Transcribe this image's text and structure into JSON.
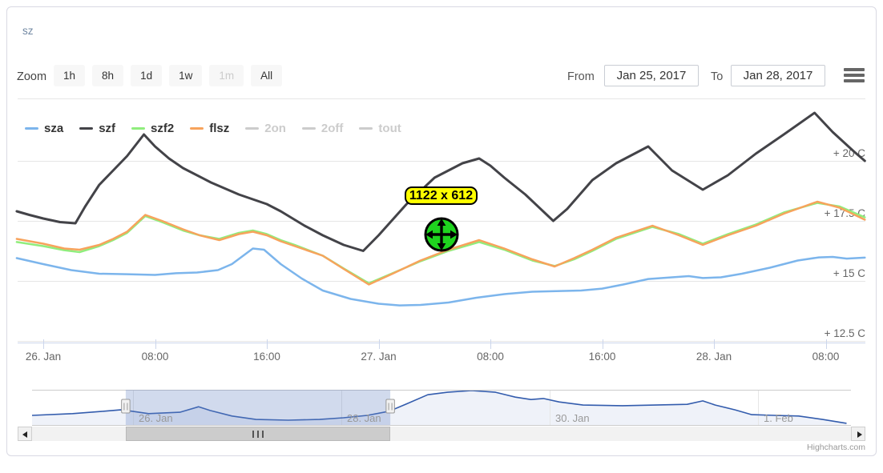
{
  "header": {
    "title": "sz"
  },
  "range_selector": {
    "zoom_label": "Zoom",
    "buttons": [
      {
        "label": "1h",
        "enabled": true
      },
      {
        "label": "8h",
        "enabled": true
      },
      {
        "label": "1d",
        "enabled": true
      },
      {
        "label": "1w",
        "enabled": true
      },
      {
        "label": "1m",
        "enabled": false
      },
      {
        "label": "All",
        "enabled": true
      }
    ],
    "from_label": "From",
    "from_value": "Jan 25, 2017",
    "to_label": "To",
    "to_value": "Jan 28, 2017",
    "menu_icon": "hamburger-icon"
  },
  "legend": {
    "items": [
      {
        "label": "sza",
        "color": "#7cb5ec",
        "label_color": "#333333",
        "enabled": true
      },
      {
        "label": "szf",
        "color": "#434348",
        "label_color": "#333333",
        "enabled": true
      },
      {
        "label": "szf2",
        "color": "#90ed7d",
        "label_color": "#333333",
        "enabled": true
      },
      {
        "label": "flsz",
        "color": "#f7a35c",
        "label_color": "#333333",
        "enabled": true
      },
      {
        "label": "2on",
        "color": "#cccccc",
        "label_color": "#cccccc",
        "enabled": false
      },
      {
        "label": "2off",
        "color": "#cccccc",
        "label_color": "#cccccc",
        "enabled": false
      },
      {
        "label": "tout",
        "color": "#cccccc",
        "label_color": "#cccccc",
        "enabled": false
      }
    ]
  },
  "overlay": {
    "size_badge": "1122 x 612",
    "badge_bg": "#ffff00",
    "cursor_icon": "move-crosshair",
    "cursor_color": "#1fd41f"
  },
  "chart_data": {
    "type": "line",
    "title": "",
    "x_unit": "hours since 26. Jan 2017 00:00",
    "y_unit": "C",
    "xlim": [
      -1.9,
      58.8
    ],
    "ylim": [
      12.5,
      22.4
    ],
    "grid": "horizontal",
    "x_ticks": [
      {
        "t": 0,
        "label": "26. Jan"
      },
      {
        "t": 8,
        "label": "08:00"
      },
      {
        "t": 16,
        "label": "16:00"
      },
      {
        "t": 24,
        "label": "27. Jan"
      },
      {
        "t": 32,
        "label": "08:00"
      },
      {
        "t": 40,
        "label": "16:00"
      },
      {
        "t": 48,
        "label": "28. Jan"
      },
      {
        "t": 56,
        "label": "08:00"
      }
    ],
    "y_ticks": [
      {
        "v": 20,
        "label": "+ 20 C"
      },
      {
        "v": 17.5,
        "label": "+ 17.5 C"
      },
      {
        "v": 15,
        "label": "+ 15 C"
      },
      {
        "v": 12.5,
        "label": "+ 12.5 C"
      }
    ],
    "series": [
      {
        "name": "sza",
        "color": "#7cb5ec",
        "width": 2.5,
        "visible": true,
        "points": [
          [
            -1.9,
            15.95
          ],
          [
            0,
            15.7
          ],
          [
            2,
            15.45
          ],
          [
            4,
            15.3
          ],
          [
            6,
            15.28
          ],
          [
            8,
            15.25
          ],
          [
            9.5,
            15.32
          ],
          [
            11,
            15.35
          ],
          [
            12.5,
            15.45
          ],
          [
            13.5,
            15.7
          ],
          [
            15,
            16.35
          ],
          [
            15.8,
            16.3
          ],
          [
            17,
            15.7
          ],
          [
            18.5,
            15.1
          ],
          [
            20,
            14.6
          ],
          [
            22,
            14.25
          ],
          [
            24,
            14.05
          ],
          [
            25.5,
            13.98
          ],
          [
            27,
            14.0
          ],
          [
            29,
            14.1
          ],
          [
            31,
            14.3
          ],
          [
            33,
            14.45
          ],
          [
            35,
            14.55
          ],
          [
            37,
            14.58
          ],
          [
            38.5,
            14.6
          ],
          [
            40,
            14.68
          ],
          [
            41.5,
            14.85
          ],
          [
            43.3,
            15.08
          ],
          [
            45,
            15.15
          ],
          [
            46.2,
            15.2
          ],
          [
            47.2,
            15.12
          ],
          [
            48.5,
            15.15
          ],
          [
            50,
            15.3
          ],
          [
            52,
            15.55
          ],
          [
            54,
            15.85
          ],
          [
            55.5,
            15.98
          ],
          [
            56.5,
            16.0
          ],
          [
            57.5,
            15.93
          ],
          [
            58.8,
            15.97
          ]
        ]
      },
      {
        "name": "szf",
        "color": "#434348",
        "width": 3,
        "visible": true,
        "points": [
          [
            -1.9,
            17.9
          ],
          [
            -1,
            17.75
          ],
          [
            0,
            17.6
          ],
          [
            1.2,
            17.45
          ],
          [
            2.3,
            17.4
          ],
          [
            3,
            18.1
          ],
          [
            4,
            19.0
          ],
          [
            5,
            19.6
          ],
          [
            6,
            20.2
          ],
          [
            7.2,
            21.1
          ],
          [
            8,
            20.6
          ],
          [
            9,
            20.1
          ],
          [
            10,
            19.7
          ],
          [
            12,
            19.1
          ],
          [
            14,
            18.6
          ],
          [
            16,
            18.2
          ],
          [
            17,
            17.9
          ],
          [
            18.7,
            17.3
          ],
          [
            20,
            16.9
          ],
          [
            21.5,
            16.5
          ],
          [
            22.9,
            16.25
          ],
          [
            24,
            16.9
          ],
          [
            26,
            18.2
          ],
          [
            28,
            19.3
          ],
          [
            30,
            19.9
          ],
          [
            31.2,
            20.1
          ],
          [
            32,
            19.8
          ],
          [
            33,
            19.3
          ],
          [
            34.5,
            18.6
          ],
          [
            36.5,
            17.5
          ],
          [
            37.5,
            18.0
          ],
          [
            39.3,
            19.2
          ],
          [
            41,
            19.9
          ],
          [
            43.3,
            20.6
          ],
          [
            45,
            19.6
          ],
          [
            47.2,
            18.8
          ],
          [
            49,
            19.4
          ],
          [
            51,
            20.3
          ],
          [
            53,
            21.1
          ],
          [
            55.2,
            22.0
          ],
          [
            56.5,
            21.2
          ],
          [
            58,
            20.4
          ],
          [
            58.8,
            20.0
          ]
        ]
      },
      {
        "name": "szf2",
        "color": "#90ed7d",
        "width": 2.5,
        "visible": true,
        "points": [
          [
            -1.9,
            16.62
          ],
          [
            0,
            16.45
          ],
          [
            1.5,
            16.28
          ],
          [
            2.6,
            16.2
          ],
          [
            4,
            16.45
          ],
          [
            5,
            16.7
          ],
          [
            6,
            17.0
          ],
          [
            7.3,
            17.7
          ],
          [
            8.5,
            17.45
          ],
          [
            10,
            17.1
          ],
          [
            11.2,
            16.9
          ],
          [
            12.6,
            16.75
          ],
          [
            14,
            17.0
          ],
          [
            15,
            17.1
          ],
          [
            16,
            16.95
          ],
          [
            17,
            16.7
          ],
          [
            18,
            16.5
          ],
          [
            20,
            16.05
          ],
          [
            21.5,
            15.52
          ],
          [
            23.3,
            14.9
          ],
          [
            25,
            15.32
          ],
          [
            27,
            15.82
          ],
          [
            29,
            16.25
          ],
          [
            31.2,
            16.62
          ],
          [
            33,
            16.3
          ],
          [
            35,
            15.85
          ],
          [
            36.6,
            15.62
          ],
          [
            38,
            15.9
          ],
          [
            39.3,
            16.25
          ],
          [
            41,
            16.75
          ],
          [
            43.6,
            17.25
          ],
          [
            45.5,
            16.95
          ],
          [
            47.2,
            16.55
          ],
          [
            49,
            16.95
          ],
          [
            51,
            17.35
          ],
          [
            53,
            17.85
          ],
          [
            55.4,
            18.25
          ],
          [
            57,
            18.1
          ],
          [
            58.8,
            17.65
          ]
        ]
      },
      {
        "name": "flsz",
        "color": "#f7a35c",
        "width": 2.5,
        "visible": true,
        "points": [
          [
            -1.9,
            16.75
          ],
          [
            0,
            16.55
          ],
          [
            1.5,
            16.35
          ],
          [
            2.6,
            16.3
          ],
          [
            4,
            16.5
          ],
          [
            5,
            16.75
          ],
          [
            6,
            17.05
          ],
          [
            7.3,
            17.75
          ],
          [
            8.5,
            17.5
          ],
          [
            10,
            17.15
          ],
          [
            11.2,
            16.9
          ],
          [
            12.6,
            16.7
          ],
          [
            14,
            16.95
          ],
          [
            15,
            17.05
          ],
          [
            16,
            16.9
          ],
          [
            17,
            16.65
          ],
          [
            18,
            16.45
          ],
          [
            20,
            16.05
          ],
          [
            21.5,
            15.5
          ],
          [
            23.3,
            14.85
          ],
          [
            25,
            15.3
          ],
          [
            27,
            15.85
          ],
          [
            29,
            16.3
          ],
          [
            31.2,
            16.7
          ],
          [
            33,
            16.35
          ],
          [
            35,
            15.9
          ],
          [
            36.6,
            15.6
          ],
          [
            38,
            15.95
          ],
          [
            39.3,
            16.3
          ],
          [
            41,
            16.8
          ],
          [
            43.6,
            17.3
          ],
          [
            45.5,
            16.9
          ],
          [
            47.2,
            16.5
          ],
          [
            49,
            16.9
          ],
          [
            51,
            17.3
          ],
          [
            53,
            17.8
          ],
          [
            55.4,
            18.3
          ],
          [
            57,
            18.05
          ],
          [
            58.8,
            17.55
          ]
        ]
      },
      {
        "name": "2on",
        "color": "#cccccc",
        "width": 2.5,
        "visible": false,
        "points": []
      },
      {
        "name": "2off",
        "color": "#cccccc",
        "width": 2.5,
        "visible": false,
        "points": []
      },
      {
        "name": "tout",
        "color": "#cccccc",
        "width": 2.5,
        "visible": false,
        "points": []
      }
    ],
    "navigator": {
      "line_color": "#335cad",
      "fill_color": "rgba(51,92,173,0.08)",
      "mask_color": "rgba(102,133,194,0.3)",
      "x_unit": "days since 25. Jan 2017 00:00",
      "ticks": [
        {
          "d": 1,
          "label": "26. Jan"
        },
        {
          "d": 3,
          "label": "28. Jan"
        },
        {
          "d": 5,
          "label": "30. Jan"
        },
        {
          "d": 7,
          "label": "1. Feb"
        }
      ],
      "selection": {
        "from_d": 0.93,
        "to_d": 3.47
      },
      "points": [
        [
          0.03,
          0.28
        ],
        [
          0.42,
          0.33
        ],
        [
          0.72,
          0.4
        ],
        [
          0.88,
          0.44
        ],
        [
          0.99,
          0.4
        ],
        [
          1.15,
          0.33
        ],
        [
          1.45,
          0.37
        ],
        [
          1.63,
          0.53
        ],
        [
          1.74,
          0.42
        ],
        [
          1.95,
          0.26
        ],
        [
          2.18,
          0.16
        ],
        [
          2.49,
          0.14
        ],
        [
          2.79,
          0.16
        ],
        [
          3.02,
          0.21
        ],
        [
          3.25,
          0.28
        ],
        [
          3.46,
          0.4
        ],
        [
          3.64,
          0.63
        ],
        [
          3.83,
          0.88
        ],
        [
          4.02,
          0.95
        ],
        [
          4.25,
          1.0
        ],
        [
          4.48,
          0.95
        ],
        [
          4.67,
          0.81
        ],
        [
          4.82,
          0.74
        ],
        [
          4.94,
          0.77
        ],
        [
          5.09,
          0.67
        ],
        [
          5.32,
          0.58
        ],
        [
          5.7,
          0.56
        ],
        [
          6.01,
          0.58
        ],
        [
          6.32,
          0.6
        ],
        [
          6.47,
          0.7
        ],
        [
          6.59,
          0.58
        ],
        [
          6.78,
          0.44
        ],
        [
          6.94,
          0.3
        ],
        [
          7.16,
          0.28
        ],
        [
          7.39,
          0.26
        ],
        [
          7.62,
          0.16
        ],
        [
          7.85,
          0.05
        ]
      ]
    }
  },
  "credits": {
    "text": "Highcharts.com"
  }
}
